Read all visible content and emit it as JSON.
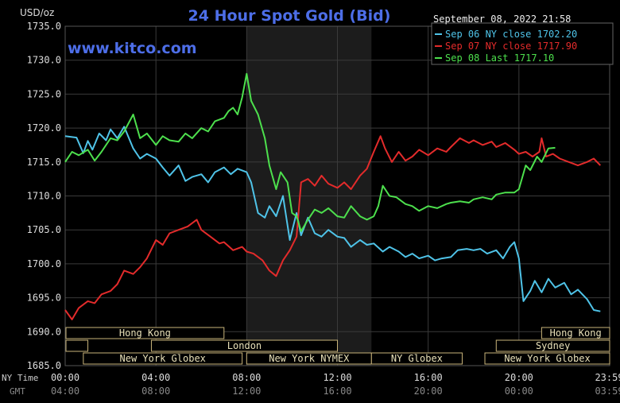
{
  "chart_data": {
    "type": "line",
    "title": "24 Hour Spot Gold (Bid)",
    "watermark": "www.kitco.com",
    "ylabel": "USD/oz",
    "ylim": [
      1685,
      1735
    ],
    "yticks": [
      "1735.0",
      "1730.0",
      "1725.0",
      "1720.0",
      "1715.0",
      "1710.0",
      "1705.0",
      "1700.0",
      "1695.0",
      "1690.0",
      "1685.0"
    ],
    "x_axis_label_ny": "NY Time",
    "x_axis_label_gmt": "GMT",
    "xticks_ny": [
      "00:00",
      "04:00",
      "08:00",
      "12:00",
      "16:00",
      "20:00",
      "23:59"
    ],
    "xticks_gmt": [
      "04:00",
      "08:00",
      "12:00",
      "16:00",
      "20:00",
      "00:00",
      "03:59"
    ],
    "xrange_hours": [
      0,
      24
    ],
    "timestamp": "September 08, 2022 21:58",
    "grid": true,
    "legend_position": "top-right",
    "shaded_session_hours": [
      8.0,
      13.5
    ],
    "series": [
      {
        "name": "Sep 06 NY close 1702.20",
        "color": "#4fc3e8",
        "x": [
          0,
          0.5,
          0.8,
          1,
          1.2,
          1.5,
          1.8,
          2,
          2.3,
          2.6,
          3,
          3.3,
          3.6,
          4,
          4.3,
          4.6,
          5,
          5.3,
          5.6,
          6,
          6.3,
          6.6,
          7,
          7.3,
          7.6,
          8,
          8.2,
          8.5,
          8.8,
          9,
          9.3,
          9.6,
          9.9,
          10.2,
          10.4,
          10.7,
          11,
          11.3,
          11.6,
          12,
          12.3,
          12.6,
          13,
          13.3,
          13.6,
          14,
          14.3,
          14.7,
          15,
          15.3,
          15.6,
          16,
          16.3,
          16.6,
          17,
          17.3,
          17.7,
          18,
          18.3,
          18.6,
          19,
          19.3,
          19.6,
          19.8,
          20,
          20.2,
          20.5,
          20.7,
          21,
          21.3,
          21.6,
          22,
          22.3,
          22.6,
          23,
          23.3,
          23.59
        ],
        "values": [
          1718.8,
          1718.6,
          1716.3,
          1718.1,
          1716.8,
          1719.2,
          1718.2,
          1719.8,
          1718.5,
          1720.2,
          1717.0,
          1715.5,
          1716.2,
          1715.5,
          1714.2,
          1713.0,
          1714.5,
          1712.2,
          1712.8,
          1713.2,
          1712.0,
          1713.5,
          1714.2,
          1713.2,
          1714.0,
          1713.5,
          1712.0,
          1707.5,
          1706.8,
          1708.5,
          1707.0,
          1710.0,
          1703.5,
          1707.5,
          1704.2,
          1706.8,
          1704.5,
          1704.0,
          1705.0,
          1704.0,
          1703.8,
          1702.5,
          1703.5,
          1702.8,
          1703.0,
          1701.8,
          1702.5,
          1701.8,
          1701.0,
          1701.5,
          1700.8,
          1701.2,
          1700.5,
          1700.8,
          1701.0,
          1702.0,
          1702.2,
          1702.0,
          1702.2,
          1701.5,
          1702.0,
          1700.8,
          1702.5,
          1703.2,
          1700.8,
          1694.5,
          1696.0,
          1697.5,
          1695.8,
          1697.8,
          1696.5,
          1697.2,
          1695.5,
          1696.2,
          1694.8,
          1693.2,
          1693.0
        ]
      },
      {
        "name": "Sep 07 NY close 1717.90",
        "color": "#e32b2b",
        "x": [
          0,
          0.3,
          0.6,
          1,
          1.3,
          1.6,
          2,
          2.3,
          2.6,
          3,
          3.3,
          3.6,
          4,
          4.3,
          4.6,
          5,
          5.4,
          5.8,
          6,
          6.4,
          6.8,
          7,
          7.4,
          7.8,
          8,
          8.3,
          8.7,
          9,
          9.3,
          9.6,
          9.9,
          10.2,
          10.4,
          10.7,
          11,
          11.3,
          11.6,
          12,
          12.3,
          12.6,
          13,
          13.3,
          13.6,
          13.9,
          14.1,
          14.4,
          14.7,
          15,
          15.3,
          15.6,
          16,
          16.4,
          16.8,
          17,
          17.4,
          17.8,
          18,
          18.4,
          18.8,
          19,
          19.4,
          19.8,
          20,
          20.3,
          20.6,
          20.9,
          21,
          21.2,
          21.5,
          21.8,
          22.2,
          22.6,
          23,
          23.3,
          23.59
        ],
        "values": [
          1693.2,
          1691.8,
          1693.5,
          1694.5,
          1694.2,
          1695.5,
          1696.0,
          1697.0,
          1699.0,
          1698.5,
          1699.5,
          1700.8,
          1703.5,
          1702.8,
          1704.5,
          1705.0,
          1705.5,
          1706.5,
          1705.0,
          1704.0,
          1703.0,
          1703.2,
          1702.0,
          1702.5,
          1701.8,
          1701.5,
          1700.5,
          1699.0,
          1698.2,
          1700.5,
          1702.0,
          1704.0,
          1712.0,
          1712.5,
          1711.5,
          1713.0,
          1711.8,
          1711.2,
          1712.0,
          1711.0,
          1713.0,
          1714.0,
          1716.5,
          1718.8,
          1717.0,
          1715.0,
          1716.5,
          1715.2,
          1715.8,
          1716.8,
          1716.0,
          1717.0,
          1716.5,
          1717.2,
          1718.5,
          1717.8,
          1718.2,
          1717.5,
          1718.0,
          1717.2,
          1717.8,
          1716.8,
          1716.2,
          1716.5,
          1715.8,
          1716.5,
          1718.5,
          1715.8,
          1716.2,
          1715.5,
          1715.0,
          1714.5,
          1715.0,
          1715.5,
          1714.5
        ]
      },
      {
        "name": "Sep 08 Last 1717.10",
        "color": "#4de04d",
        "x": [
          0,
          0.3,
          0.6,
          1,
          1.3,
          1.6,
          2,
          2.3,
          2.6,
          3,
          3.3,
          3.6,
          4,
          4.3,
          4.6,
          5,
          5.3,
          5.6,
          6,
          6.3,
          6.6,
          7,
          7.2,
          7.4,
          7.6,
          7.8,
          8,
          8.2,
          8.5,
          8.8,
          9,
          9.3,
          9.5,
          9.8,
          10,
          10.2,
          10.4,
          10.7,
          11,
          11.3,
          11.6,
          12,
          12.3,
          12.6,
          13,
          13.3,
          13.6,
          13.8,
          14,
          14.3,
          14.6,
          15,
          15.3,
          15.6,
          16,
          16.4,
          16.8,
          17,
          17.4,
          17.8,
          18,
          18.4,
          18.8,
          19,
          19.4,
          19.8,
          20,
          20.3,
          20.5,
          20.8,
          21,
          21.3,
          21.6
        ],
        "values": [
          1715.0,
          1716.5,
          1716.0,
          1716.8,
          1715.2,
          1716.5,
          1718.5,
          1718.2,
          1719.5,
          1722.0,
          1718.5,
          1719.2,
          1717.5,
          1718.8,
          1718.2,
          1718.0,
          1719.2,
          1718.5,
          1720.0,
          1719.5,
          1721.0,
          1721.5,
          1722.5,
          1723.0,
          1722.0,
          1724.5,
          1728.0,
          1724.0,
          1722.0,
          1718.5,
          1714.5,
          1711.0,
          1713.5,
          1712.0,
          1707.5,
          1707.0,
          1704.8,
          1706.5,
          1708.0,
          1707.5,
          1708.2,
          1707.0,
          1706.8,
          1708.5,
          1707.0,
          1706.5,
          1707.0,
          1708.5,
          1711.5,
          1710.0,
          1709.8,
          1708.8,
          1708.5,
          1707.8,
          1708.5,
          1708.2,
          1708.8,
          1709.0,
          1709.2,
          1709.0,
          1709.5,
          1709.8,
          1709.5,
          1710.2,
          1710.5,
          1710.5,
          1711.0,
          1714.5,
          1713.8,
          1715.8,
          1715.0,
          1717.0,
          1717.1
        ]
      }
    ]
  },
  "sessions": [
    {
      "label": "Hong Kong",
      "row": 0,
      "bars": [
        [
          0,
          7.0
        ]
      ]
    },
    {
      "label": "Hong Kong",
      "row": 0,
      "bars": [
        [
          21.0,
          24.0
        ]
      ]
    },
    {
      "label": "London",
      "row": 1,
      "bars": [
        [
          0,
          1.0
        ],
        [
          3.8,
          12.0
        ]
      ]
    },
    {
      "label": "Sydney",
      "row": 1,
      "bars": [
        [
          19.0,
          24.0
        ]
      ]
    },
    {
      "label": "New York Globex",
      "row": 2,
      "bars": [
        [
          0.8,
          7.8
        ]
      ]
    },
    {
      "label": "New York NYMEX",
      "row": 2,
      "bars": [
        [
          8.0,
          13.5
        ]
      ]
    },
    {
      "label": "NY Globex",
      "row": 2,
      "bars": [
        [
          13.5,
          17.5
        ]
      ]
    },
    {
      "label": "New York Globex",
      "row": 2,
      "bars": [
        [
          18.5,
          24.0
        ]
      ]
    }
  ]
}
